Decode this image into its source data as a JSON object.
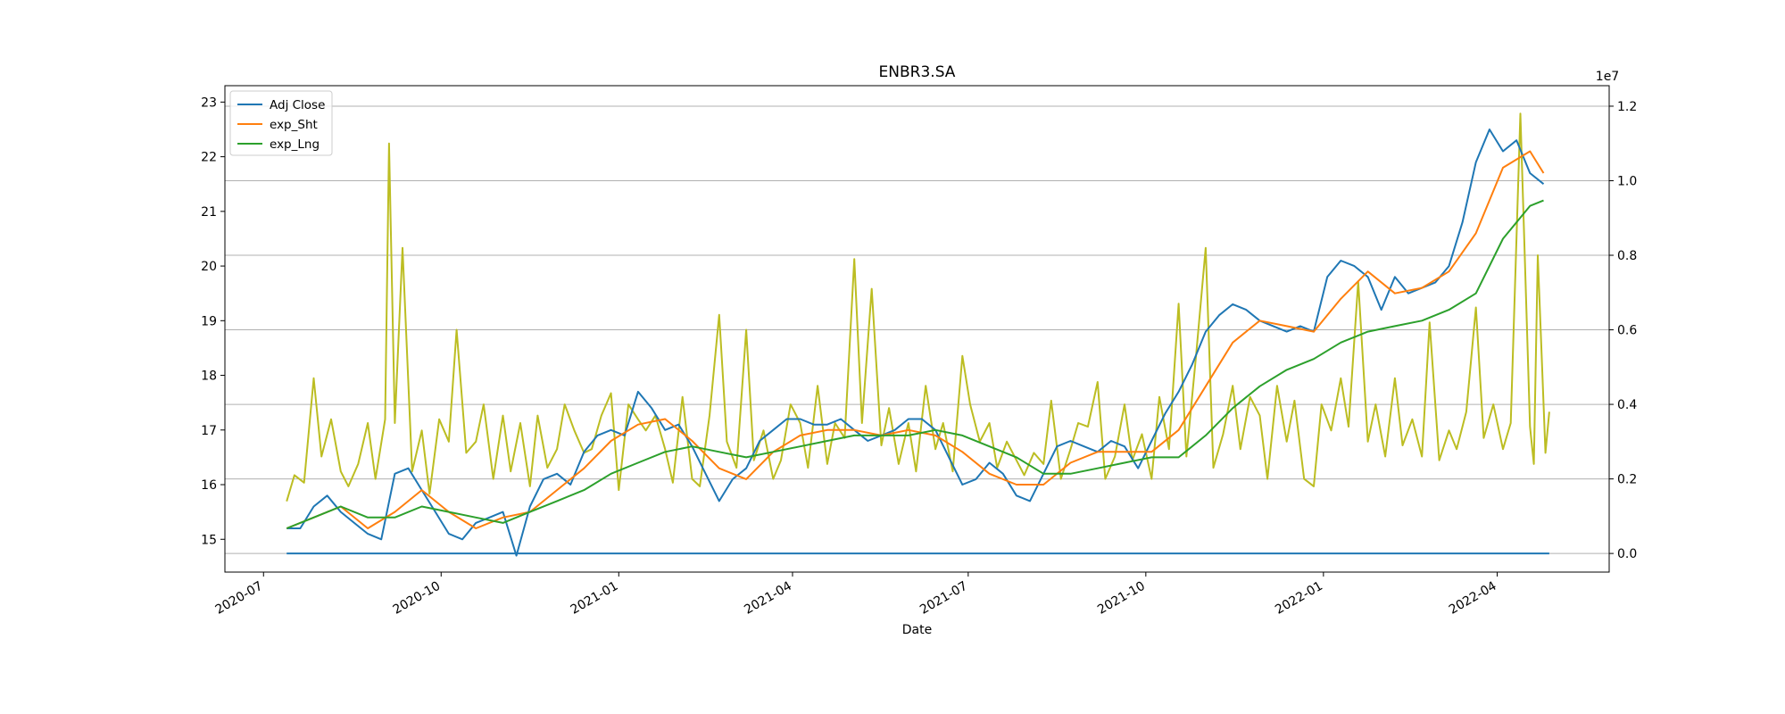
{
  "chart_data": {
    "type": "line",
    "title": "ENBR3.SA",
    "xlabel": "Date",
    "ylabel": "",
    "y2label": "",
    "y2_offset_label": "1e7",
    "grid": "horizontal lines at right-axis ticks",
    "legend_placement": "top-left",
    "x_ticks": [
      "2020-07",
      "2020-10",
      "2021-01",
      "2021-04",
      "2021-07",
      "2021-10",
      "2022-01",
      "2022-04"
    ],
    "xlim": [
      "2020-06-11",
      "2022-05-29"
    ],
    "y_ticks": [
      15,
      16,
      17,
      18,
      19,
      20,
      21,
      22,
      23
    ],
    "ylim": [
      14.4,
      23.3
    ],
    "y2_ticks": [
      0.0,
      0.2,
      0.4,
      0.6,
      0.8,
      1.0,
      1.2
    ],
    "y2_tick_labels": [
      "0.0",
      "0.2",
      "0.4",
      "0.6",
      "0.8",
      "1.0",
      "1.2"
    ],
    "y2lim": [
      -0.05,
      1.255
    ],
    "colors": {
      "adj_close": "#1f77b4",
      "exp_sht": "#ff7f0e",
      "exp_lng": "#2ca02c",
      "volume": "#bcbd22",
      "grid": "#b0b0b0"
    },
    "legend": [
      "Adj Close",
      "exp_Sht",
      "exp_Lng"
    ],
    "series": [
      {
        "name": "Adj Close",
        "axis": "left",
        "x": [
          "2020-07-13",
          "2020-07-20",
          "2020-07-27",
          "2020-08-03",
          "2020-08-10",
          "2020-08-17",
          "2020-08-24",
          "2020-08-31",
          "2020-09-07",
          "2020-09-14",
          "2020-09-21",
          "2020-09-28",
          "2020-10-05",
          "2020-10-12",
          "2020-10-19",
          "2020-10-26",
          "2020-11-02",
          "2020-11-09",
          "2020-11-16",
          "2020-11-23",
          "2020-11-30",
          "2020-12-07",
          "2020-12-14",
          "2020-12-21",
          "2020-12-28",
          "2021-01-04",
          "2021-01-11",
          "2021-01-18",
          "2021-01-25",
          "2021-02-01",
          "2021-02-08",
          "2021-02-15",
          "2021-02-22",
          "2021-03-01",
          "2021-03-08",
          "2021-03-15",
          "2021-03-22",
          "2021-03-29",
          "2021-04-05",
          "2021-04-12",
          "2021-04-19",
          "2021-04-26",
          "2021-05-03",
          "2021-05-10",
          "2021-05-17",
          "2021-05-24",
          "2021-05-31",
          "2021-06-07",
          "2021-06-14",
          "2021-06-21",
          "2021-06-28",
          "2021-07-05",
          "2021-07-12",
          "2021-07-19",
          "2021-07-26",
          "2021-08-02",
          "2021-08-09",
          "2021-08-16",
          "2021-08-23",
          "2021-08-30",
          "2021-09-06",
          "2021-09-13",
          "2021-09-20",
          "2021-09-27",
          "2021-10-04",
          "2021-10-11",
          "2021-10-18",
          "2021-10-25",
          "2021-11-01",
          "2021-11-08",
          "2021-11-15",
          "2021-11-22",
          "2021-11-29",
          "2021-12-06",
          "2021-12-13",
          "2021-12-20",
          "2021-12-27",
          "2022-01-03",
          "2022-01-10",
          "2022-01-17",
          "2022-01-24",
          "2022-01-31",
          "2022-02-07",
          "2022-02-14",
          "2022-02-21",
          "2022-02-28",
          "2022-03-07",
          "2022-03-14",
          "2022-03-21",
          "2022-03-28",
          "2022-04-04",
          "2022-04-11",
          "2022-04-18",
          "2022-04-25"
        ],
        "values": [
          15.2,
          15.2,
          15.6,
          15.8,
          15.5,
          15.3,
          15.1,
          15.0,
          16.2,
          16.3,
          15.9,
          15.5,
          15.1,
          15.0,
          15.3,
          15.4,
          15.5,
          14.7,
          15.6,
          16.1,
          16.2,
          16.0,
          16.6,
          16.9,
          17.0,
          16.9,
          17.7,
          17.4,
          17.0,
          17.1,
          16.7,
          16.2,
          15.7,
          16.1,
          16.3,
          16.8,
          17.0,
          17.2,
          17.2,
          17.1,
          17.1,
          17.2,
          17.0,
          16.8,
          16.9,
          17.0,
          17.2,
          17.2,
          17.0,
          16.5,
          16.0,
          16.1,
          16.4,
          16.2,
          15.8,
          15.7,
          16.2,
          16.7,
          16.8,
          16.7,
          16.6,
          16.8,
          16.7,
          16.3,
          16.8,
          17.3,
          17.7,
          18.2,
          18.8,
          19.1,
          19.3,
          19.2,
          19.0,
          18.9,
          18.8,
          18.9,
          18.8,
          19.8,
          20.1,
          20.0,
          19.8,
          19.2,
          19.8,
          19.5,
          19.6,
          19.7,
          20.0,
          20.8,
          21.9,
          22.5,
          22.1,
          22.3,
          21.7,
          21.5
        ]
      },
      {
        "name": "exp_Sht",
        "axis": "left",
        "x": [
          "2020-07-13",
          "2020-07-27",
          "2020-08-10",
          "2020-08-24",
          "2020-09-07",
          "2020-09-21",
          "2020-10-05",
          "2020-10-19",
          "2020-11-02",
          "2020-11-16",
          "2020-11-30",
          "2020-12-14",
          "2020-12-28",
          "2021-01-11",
          "2021-01-25",
          "2021-02-08",
          "2021-02-22",
          "2021-03-08",
          "2021-03-22",
          "2021-04-05",
          "2021-04-19",
          "2021-05-03",
          "2021-05-17",
          "2021-05-31",
          "2021-06-14",
          "2021-06-28",
          "2021-07-12",
          "2021-07-26",
          "2021-08-09",
          "2021-08-23",
          "2021-09-06",
          "2021-09-20",
          "2021-10-04",
          "2021-10-18",
          "2021-11-01",
          "2021-11-15",
          "2021-11-29",
          "2021-12-13",
          "2021-12-27",
          "2022-01-10",
          "2022-01-24",
          "2022-02-07",
          "2022-02-21",
          "2022-03-07",
          "2022-03-21",
          "2022-04-04",
          "2022-04-18",
          "2022-04-25"
        ],
        "values": [
          15.2,
          15.4,
          15.6,
          15.2,
          15.5,
          15.9,
          15.5,
          15.2,
          15.4,
          15.5,
          15.9,
          16.3,
          16.8,
          17.1,
          17.2,
          16.8,
          16.3,
          16.1,
          16.6,
          16.9,
          17.0,
          17.0,
          16.9,
          17.0,
          16.9,
          16.6,
          16.2,
          16.0,
          16.0,
          16.4,
          16.6,
          16.6,
          16.6,
          17.0,
          17.8,
          18.6,
          19.0,
          18.9,
          18.8,
          19.4,
          19.9,
          19.5,
          19.6,
          19.9,
          20.6,
          21.8,
          22.1,
          21.7
        ]
      },
      {
        "name": "exp_Lng",
        "axis": "left",
        "x": [
          "2020-07-13",
          "2020-07-27",
          "2020-08-10",
          "2020-08-24",
          "2020-09-07",
          "2020-09-21",
          "2020-10-05",
          "2020-10-19",
          "2020-11-02",
          "2020-11-16",
          "2020-11-30",
          "2020-12-14",
          "2020-12-28",
          "2021-01-11",
          "2021-01-25",
          "2021-02-08",
          "2021-02-22",
          "2021-03-08",
          "2021-03-22",
          "2021-04-05",
          "2021-04-19",
          "2021-05-03",
          "2021-05-17",
          "2021-05-31",
          "2021-06-14",
          "2021-06-28",
          "2021-07-12",
          "2021-07-26",
          "2021-08-09",
          "2021-08-23",
          "2021-09-06",
          "2021-09-20",
          "2021-10-04",
          "2021-10-18",
          "2021-11-01",
          "2021-11-15",
          "2021-11-29",
          "2021-12-13",
          "2021-12-27",
          "2022-01-10",
          "2022-01-24",
          "2022-02-07",
          "2022-02-21",
          "2022-03-07",
          "2022-03-21",
          "2022-04-04",
          "2022-04-18",
          "2022-04-25"
        ],
        "values": [
          15.2,
          15.4,
          15.6,
          15.4,
          15.4,
          15.6,
          15.5,
          15.4,
          15.3,
          15.5,
          15.7,
          15.9,
          16.2,
          16.4,
          16.6,
          16.7,
          16.6,
          16.5,
          16.6,
          16.7,
          16.8,
          16.9,
          16.9,
          16.9,
          17.0,
          16.9,
          16.7,
          16.5,
          16.2,
          16.2,
          16.3,
          16.4,
          16.5,
          16.5,
          16.9,
          17.4,
          17.8,
          18.1,
          18.3,
          18.6,
          18.8,
          18.9,
          19.0,
          19.2,
          19.5,
          20.5,
          21.1,
          21.2
        ]
      },
      {
        "name": "",
        "axis": "right",
        "x": [
          "2020-07-13",
          "2020-07-17",
          "2020-07-22",
          "2020-07-27",
          "2020-07-31",
          "2020-08-05",
          "2020-08-10",
          "2020-08-14",
          "2020-08-19",
          "2020-08-24",
          "2020-08-28",
          "2020-09-02",
          "2020-09-04",
          "2020-09-07",
          "2020-09-11",
          "2020-09-16",
          "2020-09-21",
          "2020-09-25",
          "2020-09-30",
          "2020-10-05",
          "2020-10-09",
          "2020-10-14",
          "2020-10-19",
          "2020-10-23",
          "2020-10-28",
          "2020-11-02",
          "2020-11-06",
          "2020-11-11",
          "2020-11-16",
          "2020-11-20",
          "2020-11-25",
          "2020-11-30",
          "2020-12-04",
          "2020-12-09",
          "2020-12-14",
          "2020-12-18",
          "2020-12-23",
          "2020-12-28",
          "2021-01-01",
          "2021-01-06",
          "2021-01-11",
          "2021-01-15",
          "2021-01-20",
          "2021-01-25",
          "2021-01-29",
          "2021-02-03",
          "2021-02-08",
          "2021-02-12",
          "2021-02-17",
          "2021-02-22",
          "2021-02-26",
          "2021-03-03",
          "2021-03-08",
          "2021-03-12",
          "2021-03-17",
          "2021-03-22",
          "2021-03-26",
          "2021-03-31",
          "2021-04-05",
          "2021-04-09",
          "2021-04-14",
          "2021-04-19",
          "2021-04-23",
          "2021-04-28",
          "2021-05-03",
          "2021-05-07",
          "2021-05-12",
          "2021-05-17",
          "2021-05-21",
          "2021-05-26",
          "2021-05-31",
          "2021-06-04",
          "2021-06-09",
          "2021-06-14",
          "2021-06-18",
          "2021-06-23",
          "2021-06-28",
          "2021-07-02",
          "2021-07-07",
          "2021-07-12",
          "2021-07-16",
          "2021-07-21",
          "2021-07-26",
          "2021-07-30",
          "2021-08-04",
          "2021-08-09",
          "2021-08-13",
          "2021-08-18",
          "2021-08-23",
          "2021-08-27",
          "2021-09-01",
          "2021-09-06",
          "2021-09-10",
          "2021-09-15",
          "2021-09-20",
          "2021-09-24",
          "2021-09-29",
          "2021-10-04",
          "2021-10-08",
          "2021-10-13",
          "2021-10-18",
          "2021-10-22",
          "2021-10-27",
          "2021-11-01",
          "2021-11-05",
          "2021-11-10",
          "2021-11-15",
          "2021-11-19",
          "2021-11-24",
          "2021-11-29",
          "2021-12-03",
          "2021-12-08",
          "2021-12-13",
          "2021-12-17",
          "2021-12-22",
          "2021-12-27",
          "2021-12-31",
          "2022-01-05",
          "2022-01-10",
          "2022-01-14",
          "2022-01-19",
          "2022-01-24",
          "2022-01-28",
          "2022-02-02",
          "2022-02-07",
          "2022-02-11",
          "2022-02-16",
          "2022-02-21",
          "2022-02-25",
          "2022-03-02",
          "2022-03-07",
          "2022-03-11",
          "2022-03-16",
          "2022-03-21",
          "2022-03-25",
          "2022-03-30",
          "2022-04-04",
          "2022-04-08",
          "2022-04-13",
          "2022-04-18",
          "2022-04-20",
          "2022-04-22",
          "2022-04-26",
          "2022-04-28"
        ],
        "values": [
          0.14,
          0.21,
          0.19,
          0.47,
          0.26,
          0.36,
          0.22,
          0.18,
          0.24,
          0.35,
          0.2,
          0.36,
          1.1,
          0.35,
          0.82,
          0.22,
          0.33,
          0.16,
          0.36,
          0.3,
          0.6,
          0.27,
          0.3,
          0.4,
          0.2,
          0.37,
          0.22,
          0.35,
          0.18,
          0.37,
          0.23,
          0.28,
          0.4,
          0.33,
          0.27,
          0.28,
          0.37,
          0.43,
          0.17,
          0.4,
          0.36,
          0.33,
          0.37,
          0.28,
          0.19,
          0.42,
          0.2,
          0.18,
          0.37,
          0.64,
          0.3,
          0.23,
          0.6,
          0.25,
          0.33,
          0.2,
          0.25,
          0.4,
          0.35,
          0.23,
          0.45,
          0.24,
          0.35,
          0.31,
          0.79,
          0.35,
          0.71,
          0.29,
          0.39,
          0.24,
          0.35,
          0.22,
          0.45,
          0.28,
          0.35,
          0.22,
          0.53,
          0.4,
          0.3,
          0.35,
          0.23,
          0.3,
          0.25,
          0.21,
          0.27,
          0.24,
          0.41,
          0.2,
          0.28,
          0.35,
          0.34,
          0.46,
          0.2,
          0.26,
          0.4,
          0.25,
          0.32,
          0.2,
          0.42,
          0.28,
          0.67,
          0.26,
          0.53,
          0.82,
          0.23,
          0.32,
          0.45,
          0.28,
          0.42,
          0.37,
          0.2,
          0.45,
          0.3,
          0.41,
          0.2,
          0.18,
          0.4,
          0.33,
          0.47,
          0.34,
          0.73,
          0.3,
          0.4,
          0.26,
          0.47,
          0.29,
          0.36,
          0.26,
          0.62,
          0.25,
          0.33,
          0.28,
          0.38,
          0.66,
          0.31,
          0.4,
          0.28,
          0.35,
          1.18,
          0.34,
          0.24,
          0.8,
          0.27,
          0.38
        ]
      },
      {
        "name": "",
        "axis": "right",
        "x": [
          "2020-07-13",
          "2022-04-28"
        ],
        "values": [
          0.0,
          0.0
        ]
      }
    ]
  }
}
